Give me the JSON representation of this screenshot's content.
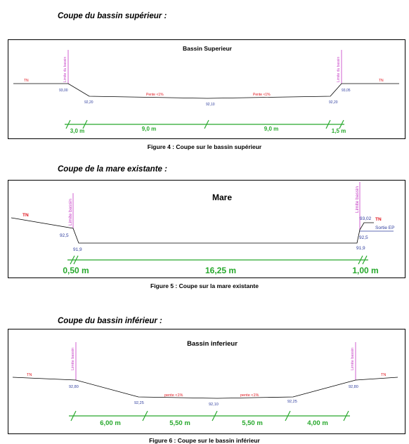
{
  "sections": [
    {
      "heading": "Coupe du bassin supérieur :",
      "caption": "Figure 4 : Coupe sur le bassin supérieur",
      "diagram_title": "Bassin Superieur",
      "left_limit_label": "Limite du bassin",
      "right_limit_label": "Limite du bassin",
      "tn_left": "TN",
      "tn_right": "TN",
      "elev_left_top": "93,00",
      "elev_right_top": "93,05",
      "elev_left_bottom": "92,20",
      "elev_center": "92,10",
      "elev_right_bottom": "92,20",
      "slope_left": "Pente <1%",
      "slope_right": "Pente <1%",
      "dims": [
        "3,0 m",
        "9,0 m",
        "9,0 m",
        "1,5 m"
      ]
    },
    {
      "heading": "Coupe de la mare existante :",
      "caption": "Figure 5 : Coupe sur la mare existante",
      "diagram_title": "Mare",
      "left_limit_label": "Limite bassin",
      "right_limit_label": "Limite bassin",
      "tn_left": "TN",
      "tn_right": "TN",
      "elev_left_top": "92,5",
      "elev_left_bottom": "91,9",
      "elev_right_top": "93,02",
      "elev_right_mid": "92,5",
      "elev_right_bottom": "91,9",
      "outlet_label": "Sortie EP",
      "dims": [
        "0,50 m",
        "16,25 m",
        "1,00 m"
      ]
    },
    {
      "heading": "Coupe du bassin inférieur :",
      "caption": "Figure 6 : Coupe sur le bassin inférieur",
      "diagram_title": "Bassin inferieur",
      "left_limit_label": "Limite bassin",
      "right_limit_label": "Limite bassin",
      "tn_left": "TN",
      "tn_right": "TN",
      "elev_left_top": "92,80",
      "elev_right_top": "92,80",
      "elev_left_bottom": "92,25",
      "elev_center": "92,10",
      "elev_right_bottom": "92,25",
      "slope_left": "pente <1%",
      "slope_right": "pente <1%",
      "dims": [
        "6,00 m",
        "5,50 m",
        "5,50 m",
        "4,00 m"
      ]
    }
  ],
  "colors": {
    "ground_line": "#000000",
    "elevation_text": "#2e3d9e",
    "slope_text": "#e0141c",
    "limit_line": "#c43ac4",
    "dimension": "#27a82c"
  }
}
